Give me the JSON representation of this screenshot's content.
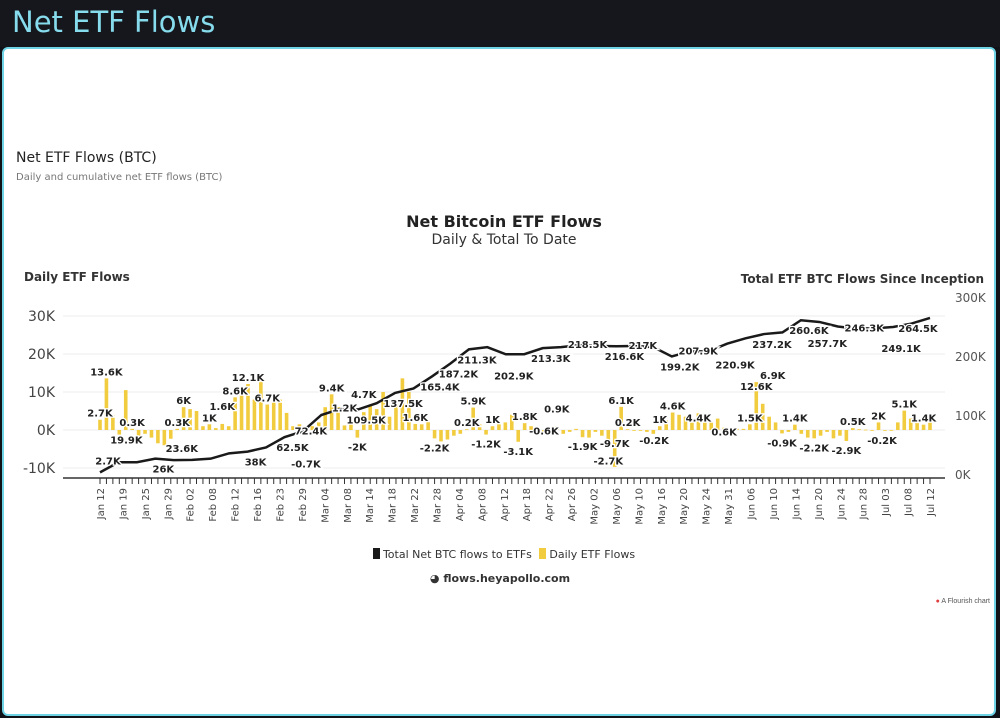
{
  "header": {
    "title": "Net ETF Flows"
  },
  "section": {
    "title": "Net ETF Flows (BTC)",
    "subtitle": "Daily and cumulative net ETF flows (BTC)"
  },
  "source": {
    "text": "flows.heyapollo.com",
    "credit": "A Flourish chart",
    "credit_dot_color": "#e04040"
  },
  "colors": {
    "bar": "#f2cc3f",
    "line": "#1a1a1a",
    "accent": "#86dcec"
  },
  "chart_data": {
    "type": "bar+line",
    "title": "Net Bitcoin ETF Flows",
    "subtitle": "Daily & Total To Date",
    "ylabel_left": "Daily ETF Flows",
    "ylabel_right": "Total ETF BTC Flows Since Inception",
    "ylim_left": [
      -10,
      30
    ],
    "ylim_right": [
      0,
      300
    ],
    "yticks_left": [
      "30K",
      "20K",
      "10K",
      "0K",
      "-10K"
    ],
    "yticks_right": [
      "300K",
      "200K",
      "100K",
      "0K"
    ],
    "grid": true,
    "legend_position": "bottom",
    "x_tick_labels": [
      "Jan 12",
      "Jan 19",
      "Jan 25",
      "Jan 29",
      "Feb 02",
      "Feb 08",
      "Feb 12",
      "Feb 16",
      "Feb 23",
      "Feb 29",
      "Mar 04",
      "Mar 08",
      "Mar 14",
      "Mar 18",
      "Mar 22",
      "Mar 28",
      "Apr 04",
      "Apr 08",
      "Apr 12",
      "Apr 18",
      "Apr 22",
      "Apr 26",
      "May 02",
      "May 06",
      "May 10",
      "May 16",
      "May 20",
      "May 24",
      "May 31",
      "Jun 06",
      "Jun 10",
      "Jun 14",
      "Jun 20",
      "Jun 24",
      "Jun 28",
      "Jul 03",
      "Jul 08",
      "Jul 12"
    ],
    "series": [
      {
        "name": "Daily ETF Flows",
        "unit": "K BTC",
        "values": [
          2.7,
          13.6,
          3.8,
          -1.2,
          10.5,
          0.3,
          -3.0,
          -1.0,
          -2.0,
          -3.5,
          -4.0,
          -2.3,
          0.3,
          6.0,
          5.5,
          5.0,
          1.0,
          1.5,
          0.5,
          1.6,
          1.0,
          8.6,
          9.5,
          12.1,
          8.0,
          13.0,
          6.7,
          7.5,
          8.0,
          4.5,
          1.0,
          1.5,
          -0.7,
          1.0,
          2.0,
          6.0,
          9.4,
          6.0,
          1.2,
          1.5,
          -2.0,
          4.7,
          6.5,
          5.5,
          10.0,
          3.5,
          6.5,
          13.6,
          10.0,
          1.6,
          1.5,
          2.5,
          -2.2,
          -3.0,
          -2.5,
          -1.5,
          -1.0,
          0.2,
          5.9,
          1.5,
          -1.2,
          1.0,
          1.5,
          2.0,
          4.0,
          -3.1,
          1.8,
          1.0,
          0.5,
          -0.6,
          -0.8,
          0.9,
          -1.0,
          -0.5,
          0.3,
          -1.9,
          -2.0,
          -0.5,
          -1.5,
          -2.7,
          -9.7,
          6.1,
          0.2,
          -0.2,
          0,
          -0.5,
          -1.0,
          1,
          2.5,
          4.6,
          4.0,
          3.5,
          3.0,
          4.4,
          3.5,
          2.0,
          3.0,
          0.6,
          0.5,
          0.4,
          0.3,
          1.5,
          12.6,
          6.9,
          3.5,
          2.0,
          -0.9,
          -0.5,
          1.4,
          -1.0,
          -2.0,
          -2.2,
          -1.5,
          -0.5,
          -2.2,
          -1.5,
          -2.9,
          0.5,
          0.2,
          0.1,
          -0.2,
          2.0,
          0,
          0,
          2.0,
          5.1,
          3.0,
          1.8,
          1.4,
          2.0
        ]
      },
      {
        "name": "Total Net BTC flows to ETFs",
        "unit": "K BTC",
        "values": [
          2.7,
          19.9,
          20,
          26,
          23.6,
          24,
          26,
          35,
          38,
          45,
          62.5,
          72.4,
          100,
          110,
          109.5,
          120,
          137.5,
          145,
          165.4,
          187.2,
          211.3,
          215,
          202.9,
          203,
          213.3,
          215,
          218.5,
          217,
          216.6,
          217,
          215,
          199.2,
          207.9,
          208,
          220.9,
          230,
          237.2,
          240,
          260.6,
          257.7,
          250,
          246.3,
          247,
          249.1,
          255,
          264.5
        ]
      }
    ],
    "daily_labels": [
      {
        "day": 0,
        "text": "2.7K"
      },
      {
        "day": 1,
        "text": "13.6K"
      },
      {
        "day": 5,
        "text": "0.3K"
      },
      {
        "day": 12,
        "text": "0.3K"
      },
      {
        "day": 13,
        "text": "6K"
      },
      {
        "day": 17,
        "text": "1K"
      },
      {
        "day": 19,
        "text": "1.6K"
      },
      {
        "day": 21,
        "text": "8.6K"
      },
      {
        "day": 23,
        "text": "12.1K"
      },
      {
        "day": 26,
        "text": "6.7K"
      },
      {
        "day": 32,
        "text": "-0.7K"
      },
      {
        "day": 36,
        "text": "9.4K"
      },
      {
        "day": 38,
        "text": "1.2K"
      },
      {
        "day": 40,
        "text": "-2K"
      },
      {
        "day": 41,
        "text": "4.7K"
      },
      {
        "day": 49,
        "text": "1.6K"
      },
      {
        "day": 52,
        "text": "-2.2K"
      },
      {
        "day": 57,
        "text": "0.2K"
      },
      {
        "day": 58,
        "text": "5.9K"
      },
      {
        "day": 60,
        "text": "-1.2K"
      },
      {
        "day": 61,
        "text": "1K"
      },
      {
        "day": 65,
        "text": "-3.1K"
      },
      {
        "day": 66,
        "text": "1.8K"
      },
      {
        "day": 69,
        "text": "-0.6K"
      },
      {
        "day": 71,
        "text": "0.9K"
      },
      {
        "day": 75,
        "text": "-1.9K"
      },
      {
        "day": 79,
        "text": "-2.7K"
      },
      {
        "day": 80,
        "text": "-9.7K"
      },
      {
        "day": 81,
        "text": "6.1K"
      },
      {
        "day": 82,
        "text": "0.2K"
      },
      {
        "day": 83,
        "text": "-0.2K"
      },
      {
        "day": 87,
        "text": "1K"
      },
      {
        "day": 89,
        "text": "4.6K"
      },
      {
        "day": 93,
        "text": "4.4K"
      },
      {
        "day": 97,
        "text": "0.6K"
      },
      {
        "day": 101,
        "text": "1.5K"
      },
      {
        "day": 102,
        "text": "12.6K"
      },
      {
        "day": 103,
        "text": "6.9K"
      },
      {
        "day": 106,
        "text": "-0.9K"
      },
      {
        "day": 108,
        "text": "1.4K"
      },
      {
        "day": 111,
        "text": "-2.2K"
      },
      {
        "day": 116,
        "text": "-2.9K"
      },
      {
        "day": 117,
        "text": "0.5K"
      },
      {
        "day": 120,
        "text": "-0.2K"
      },
      {
        "day": 121,
        "text": "2K"
      },
      {
        "day": 125,
        "text": "5.1K"
      },
      {
        "day": 128,
        "text": "1.4K"
      }
    ],
    "cumulative_labels": [
      {
        "point": 0,
        "text": "2.7K"
      },
      {
        "point": 1,
        "text": "19.9K"
      },
      {
        "point": 3,
        "text": "26K"
      },
      {
        "point": 4,
        "text": "23.6K"
      },
      {
        "point": 8,
        "text": "38K"
      },
      {
        "point": 10,
        "text": "62.5K"
      },
      {
        "point": 11,
        "text": "72.4K"
      },
      {
        "point": 14,
        "text": "109.5K"
      },
      {
        "point": 16,
        "text": "137.5K"
      },
      {
        "point": 18,
        "text": "165.4K"
      },
      {
        "point": 19,
        "text": "187.2K"
      },
      {
        "point": 20,
        "text": "211.3K"
      },
      {
        "point": 22,
        "text": "202.9K"
      },
      {
        "point": 24,
        "text": "213.3K"
      },
      {
        "point": 26,
        "text": "218.5K"
      },
      {
        "point": 28,
        "text": "216.6K"
      },
      {
        "point": 29,
        "text": "217K"
      },
      {
        "point": 31,
        "text": "199.2K"
      },
      {
        "point": 32,
        "text": "207.9K"
      },
      {
        "point": 34,
        "text": "220.9K"
      },
      {
        "point": 36,
        "text": "237.2K"
      },
      {
        "point": 38,
        "text": "260.6K"
      },
      {
        "point": 39,
        "text": "257.7K"
      },
      {
        "point": 41,
        "text": "246.3K"
      },
      {
        "point": 43,
        "text": "249.1K"
      },
      {
        "point": 45,
        "text": "264.5K"
      }
    ]
  }
}
